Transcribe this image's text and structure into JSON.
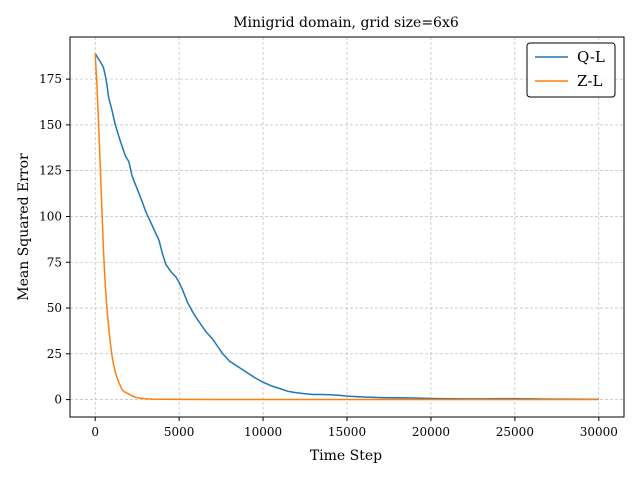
{
  "chart_data": {
    "type": "line",
    "title": "Minigrid domain, grid size=6x6",
    "xlabel": "Time Step",
    "ylabel": "Mean Squared Error",
    "xlim": [
      -1500,
      31500
    ],
    "ylim": [
      -9.5,
      198
    ],
    "xticks": [
      0,
      5000,
      10000,
      15000,
      20000,
      25000,
      30000
    ],
    "yticks": [
      0,
      25,
      50,
      75,
      100,
      125,
      150,
      175
    ],
    "grid": true,
    "legend_position": "top-right",
    "series": [
      {
        "name": "Q-L",
        "color": "#1f77b4",
        "x": [
          0,
          200,
          400,
          500,
          600,
          700,
          800,
          1000,
          1200,
          1500,
          1800,
          2000,
          2200,
          2500,
          2800,
          3000,
          3200,
          3500,
          3800,
          4000,
          4200,
          4500,
          4800,
          5000,
          5200,
          5500,
          5800,
          6000,
          6300,
          6600,
          7000,
          7300,
          7600,
          8000,
          8500,
          9000,
          9500,
          10000,
          10500,
          11000,
          11500,
          12000,
          12500,
          13000,
          13500,
          14000,
          14500,
          15000,
          16000,
          17000,
          18000,
          19000,
          20000,
          21000,
          22000,
          23000,
          24000,
          25000,
          26000,
          27000,
          28000,
          29000,
          30000
        ],
        "values": [
          189,
          186,
          183,
          181,
          177,
          172,
          165,
          158,
          150,
          141,
          133,
          130,
          122,
          115,
          108,
          103,
          99,
          93,
          87,
          80,
          74,
          70,
          67,
          64,
          60,
          53,
          48,
          45,
          41,
          37,
          33,
          29,
          25,
          21,
          18,
          15,
          12,
          9.5,
          7.5,
          6,
          4.5,
          3.7,
          3.2,
          2.8,
          2.8,
          2.6,
          2.4,
          1.9,
          1.4,
          1.1,
          1.0,
          0.9,
          0.6,
          0.5,
          0.4,
          0.4,
          0.5,
          0.5,
          0.4,
          0.3,
          0.3,
          0.2,
          0.2
        ]
      },
      {
        "name": "Z-L",
        "color": "#ff7f0e",
        "x": [
          0,
          100,
          200,
          300,
          400,
          500,
          600,
          700,
          800,
          900,
          1000,
          1100,
          1200,
          1300,
          1400,
          1500,
          1600,
          1700,
          1800,
          2000,
          2200,
          2400,
          2600,
          3000,
          3500,
          4000,
          5000,
          7000,
          10000,
          15000,
          20000,
          25000,
          30000
        ],
        "values": [
          189,
          172,
          152,
          128,
          104,
          80,
          62,
          50,
          40,
          31,
          24,
          19,
          15,
          12,
          9.5,
          7.5,
          5.5,
          4.5,
          4.0,
          3.0,
          2.0,
          1.3,
          0.9,
          0.5,
          0.3,
          0.2,
          0.1,
          0.05,
          0.05,
          0.05,
          0.05,
          0.05,
          0.05
        ]
      }
    ]
  }
}
